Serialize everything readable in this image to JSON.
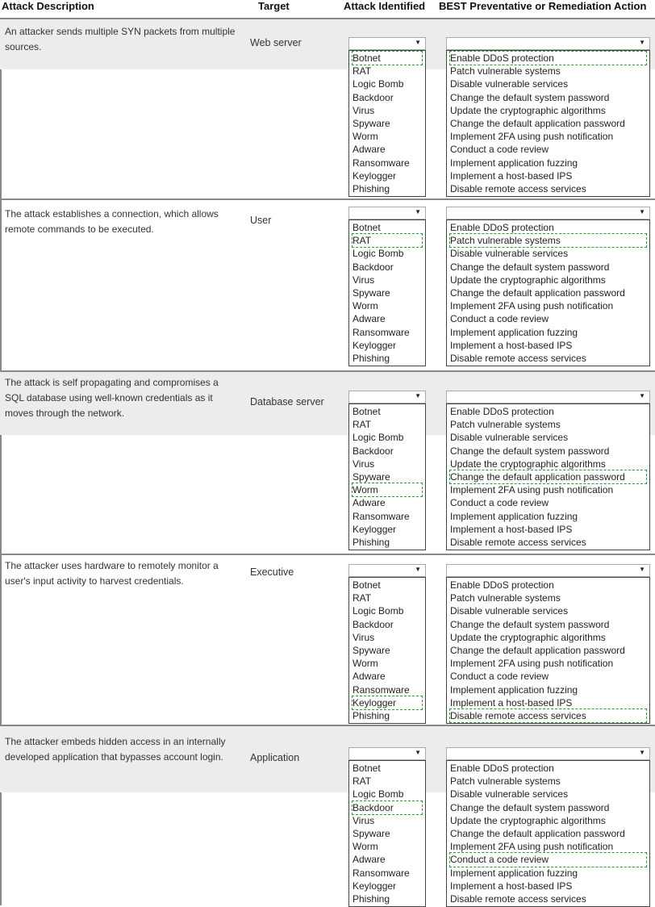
{
  "headers": {
    "description": "Attack Description",
    "target": "Target",
    "attack": "Attack Identified",
    "action": "BEST Preventative or Remediation Action"
  },
  "attack_options": [
    "Botnet",
    "RAT",
    "Logic Bomb",
    "Backdoor",
    "Virus",
    "Spyware",
    "Worm",
    "Adware",
    "Ransomware",
    "Keylogger",
    "Phishing"
  ],
  "action_options": [
    "Enable DDoS protection",
    "Patch vulnerable systems",
    "Disable vulnerable services",
    "Change the default system password",
    "Update the cryptographic algorithms",
    "Change the default application password",
    "Implement 2FA using push notification",
    "Conduct a code review",
    "Implement application fuzzing",
    "Implement a host-based IPS",
    "Disable remote access services"
  ],
  "highlight_color": "#2a9a3a",
  "rows": [
    {
      "description": "An attacker sends multiple SYN packets from multiple sources.",
      "target": "Web server",
      "attack_answer": "Botnet",
      "action_answer": "Enable DDoS protection"
    },
    {
      "description": "The attack establishes a connection, which allows remote commands to be executed.",
      "target": "User",
      "attack_answer": "RAT",
      "action_answer": "Patch vulnerable systems"
    },
    {
      "description": "The attack is self propagating and compromises a SQL database using well-known credentials as it moves through the network.",
      "target": "Database server",
      "attack_answer": "Worm",
      "action_answer": "Change the default application password"
    },
    {
      "description": "The attacker uses hardware to remotely monitor a user's input activity to harvest credentials.",
      "target": "Executive",
      "attack_answer": "Keylogger",
      "action_answer": "Disable remote access services"
    },
    {
      "description": "The attacker embeds hidden access in an internally developed application that bypasses account login.",
      "target": "Application",
      "attack_answer": "Backdoor",
      "action_answer": "Conduct a code review"
    }
  ]
}
